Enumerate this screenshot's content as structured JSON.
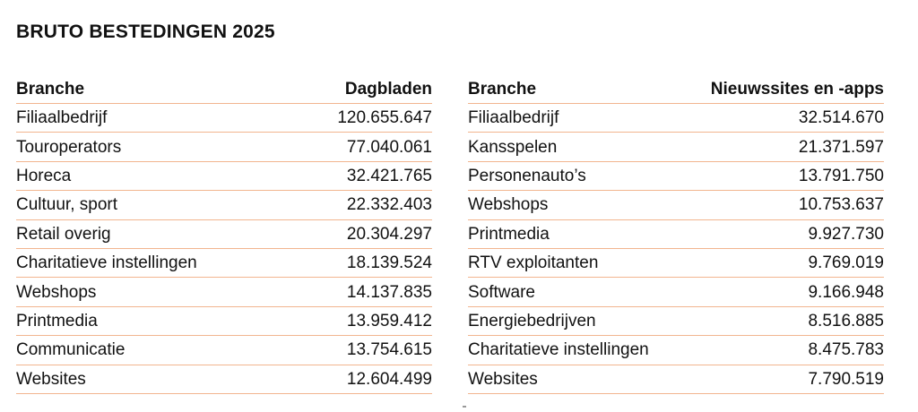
{
  "title": "BRUTO BESTEDINGEN 2025",
  "tables": [
    {
      "headers": {
        "label": "Branche",
        "value": "Dagbladen"
      },
      "rows": [
        {
          "label": "Filiaalbedrijf",
          "value": "120.655.647"
        },
        {
          "label": "Touroperators",
          "value": "77.040.061"
        },
        {
          "label": "Horeca",
          "value": "32.421.765"
        },
        {
          "label": "Cultuur, sport",
          "value": "22.332.403"
        },
        {
          "label": "Retail overig",
          "value": "20.304.297"
        },
        {
          "label": "Charitatieve instellingen",
          "value": "18.139.524"
        },
        {
          "label": "Webshops",
          "value": "14.137.835"
        },
        {
          "label": "Printmedia",
          "value": "13.959.412"
        },
        {
          "label": "Communicatie",
          "value": "13.754.615"
        },
        {
          "label": "Websites",
          "value": "12.604.499"
        }
      ]
    },
    {
      "headers": {
        "label": "Branche",
        "value": "Nieuwssites en -apps"
      },
      "rows": [
        {
          "label": "Filiaalbedrijf",
          "value": "32.514.670"
        },
        {
          "label": "Kansspelen",
          "value": "21.371.597"
        },
        {
          "label": "Personenauto’s",
          "value": "13.791.750"
        },
        {
          "label": "Webshops",
          "value": "10.753.637"
        },
        {
          "label": "Printmedia",
          "value": "9.927.730"
        },
        {
          "label": "RTV exploitanten",
          "value": "9.769.019"
        },
        {
          "label": "Software",
          "value": "9.166.948"
        },
        {
          "label": "Energiebedrijven",
          "value": "8.516.885"
        },
        {
          "label": "Charitatieve instellingen",
          "value": "8.475.783"
        },
        {
          "label": "Websites",
          "value": "7.790.519"
        }
      ]
    }
  ],
  "colors": {
    "rule": "#f2b58f",
    "text": "#111111"
  }
}
